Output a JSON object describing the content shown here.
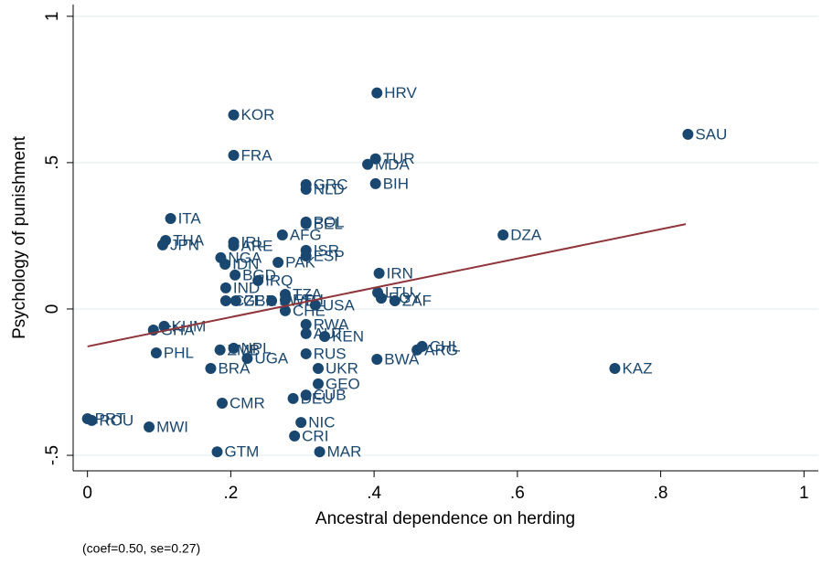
{
  "chart_data": {
    "type": "scatter",
    "x_label": "Ancestral dependence on herding",
    "y_label": "Psychology of punishment",
    "note": "(coef=0.50, se=0.27)",
    "color": "#1a476f",
    "fit_color": "#90353b",
    "grid": true,
    "xlim": [
      -0.02,
      1.02
    ],
    "ylim": [
      -0.553,
      1.04
    ],
    "xticks": [
      0,
      {
        "value": 0.2,
        "label": ".2"
      },
      {
        "value": 0.4,
        "label": ".4"
      },
      {
        "value": 0.6,
        "label": ".6"
      },
      {
        "value": 0.8,
        "label": ".8"
      },
      1
    ],
    "yticks": [
      {
        "value": -0.5,
        "label": "-.5"
      },
      0,
      {
        "value": 0.5,
        "label": ".5"
      },
      1
    ],
    "labels": [
      "HRV",
      "KOR",
      "SAU",
      "FRA",
      "TUR",
      "MDA",
      "GRC",
      "NLD",
      "BIH",
      "ITA",
      "POL",
      "BEL",
      "DZA",
      "AFG",
      "THA",
      "JPN",
      "IRL",
      "ARE",
      "ISR",
      "ESP",
      "NGA",
      "PAK",
      "IDN",
      "IRN",
      "BGD",
      "IRQ",
      "IND",
      "LTU",
      "TZA",
      "EGY",
      "ZAF",
      "CZE",
      "GBR",
      "SWE",
      "ETH",
      "CHE",
      "USA",
      "KHM",
      "GHA",
      "RWA",
      "AUT",
      "KEN",
      "PHL",
      "ZMB",
      "NPL",
      "UGA",
      "RUS",
      "CHL",
      "ARG",
      "BWA",
      "KAZ",
      "BRA",
      "UKR",
      "GEO",
      "DEU",
      "CUB",
      "CMR",
      "PRT",
      "ROU",
      "MWI",
      "NIC",
      "CRI",
      "GTM",
      "MAR"
    ],
    "x": [
      0.404,
      0.204,
      0.838,
      0.204,
      0.402,
      0.391,
      0.305,
      0.305,
      0.402,
      0.116,
      0.305,
      0.305,
      0.58,
      0.272,
      0.109,
      0.105,
      0.204,
      0.204,
      0.305,
      0.305,
      0.186,
      0.266,
      0.192,
      0.407,
      0.206,
      0.238,
      0.193,
      0.405,
      0.276,
      0.41,
      0.429,
      0.193,
      0.207,
      0.257,
      0.276,
      0.276,
      0.318,
      0.107,
      0.092,
      0.305,
      0.305,
      0.331,
      0.096,
      0.185,
      0.204,
      0.223,
      0.305,
      0.467,
      0.46,
      0.404,
      0.736,
      0.172,
      0.322,
      0.322,
      0.287,
      0.305,
      0.188,
      0.0,
      0.006,
      0.086,
      0.298,
      0.289,
      0.181,
      0.324
    ],
    "y": [
      0.738,
      0.663,
      0.597,
      0.525,
      0.513,
      0.494,
      0.425,
      0.409,
      0.428,
      0.309,
      0.297,
      0.291,
      0.253,
      0.253,
      0.234,
      0.219,
      0.228,
      0.216,
      0.2,
      0.181,
      0.175,
      0.159,
      0.153,
      0.122,
      0.116,
      0.097,
      0.072,
      0.056,
      0.05,
      0.037,
      0.028,
      0.028,
      0.028,
      0.028,
      0.031,
      -0.006,
      0.013,
      -0.059,
      -0.072,
      -0.053,
      -0.084,
      -0.094,
      -0.15,
      -0.14,
      -0.134,
      -0.169,
      -0.153,
      -0.128,
      -0.14,
      -0.172,
      -0.203,
      -0.203,
      -0.203,
      -0.256,
      -0.306,
      -0.294,
      -0.322,
      -0.375,
      -0.381,
      -0.403,
      -0.388,
      -0.434,
      -0.488,
      -0.488
    ],
    "fit": {
      "x": [
        0.0,
        0.835
      ],
      "y": [
        -0.128,
        0.29
      ]
    }
  }
}
